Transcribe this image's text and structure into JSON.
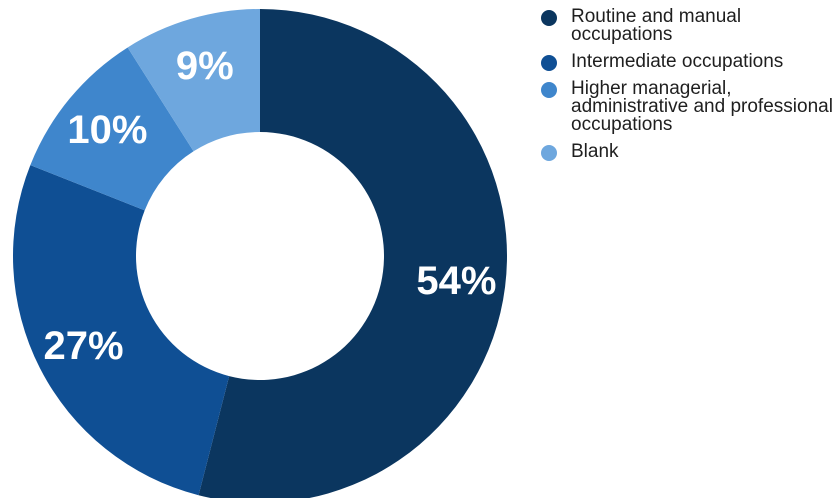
{
  "chart_data": {
    "type": "pie",
    "variant": "donut",
    "title": "",
    "start_angle_deg": 0,
    "direction": "clockwise",
    "legend_position": "right",
    "slices": [
      {
        "label": "Routine and manual occupations",
        "value": 54,
        "display": "54%",
        "color": "#0b365f"
      },
      {
        "label": "Intermediate occupations",
        "value": 27,
        "display": "27%",
        "color": "#0f4f94"
      },
      {
        "label": "Higher managerial, administrative and professional occupations",
        "value": 10,
        "display": "10%",
        "color": "#3f86cc"
      },
      {
        "label": "Blank",
        "value": 9,
        "display": "9%",
        "color": "#6ea7de"
      }
    ]
  }
}
